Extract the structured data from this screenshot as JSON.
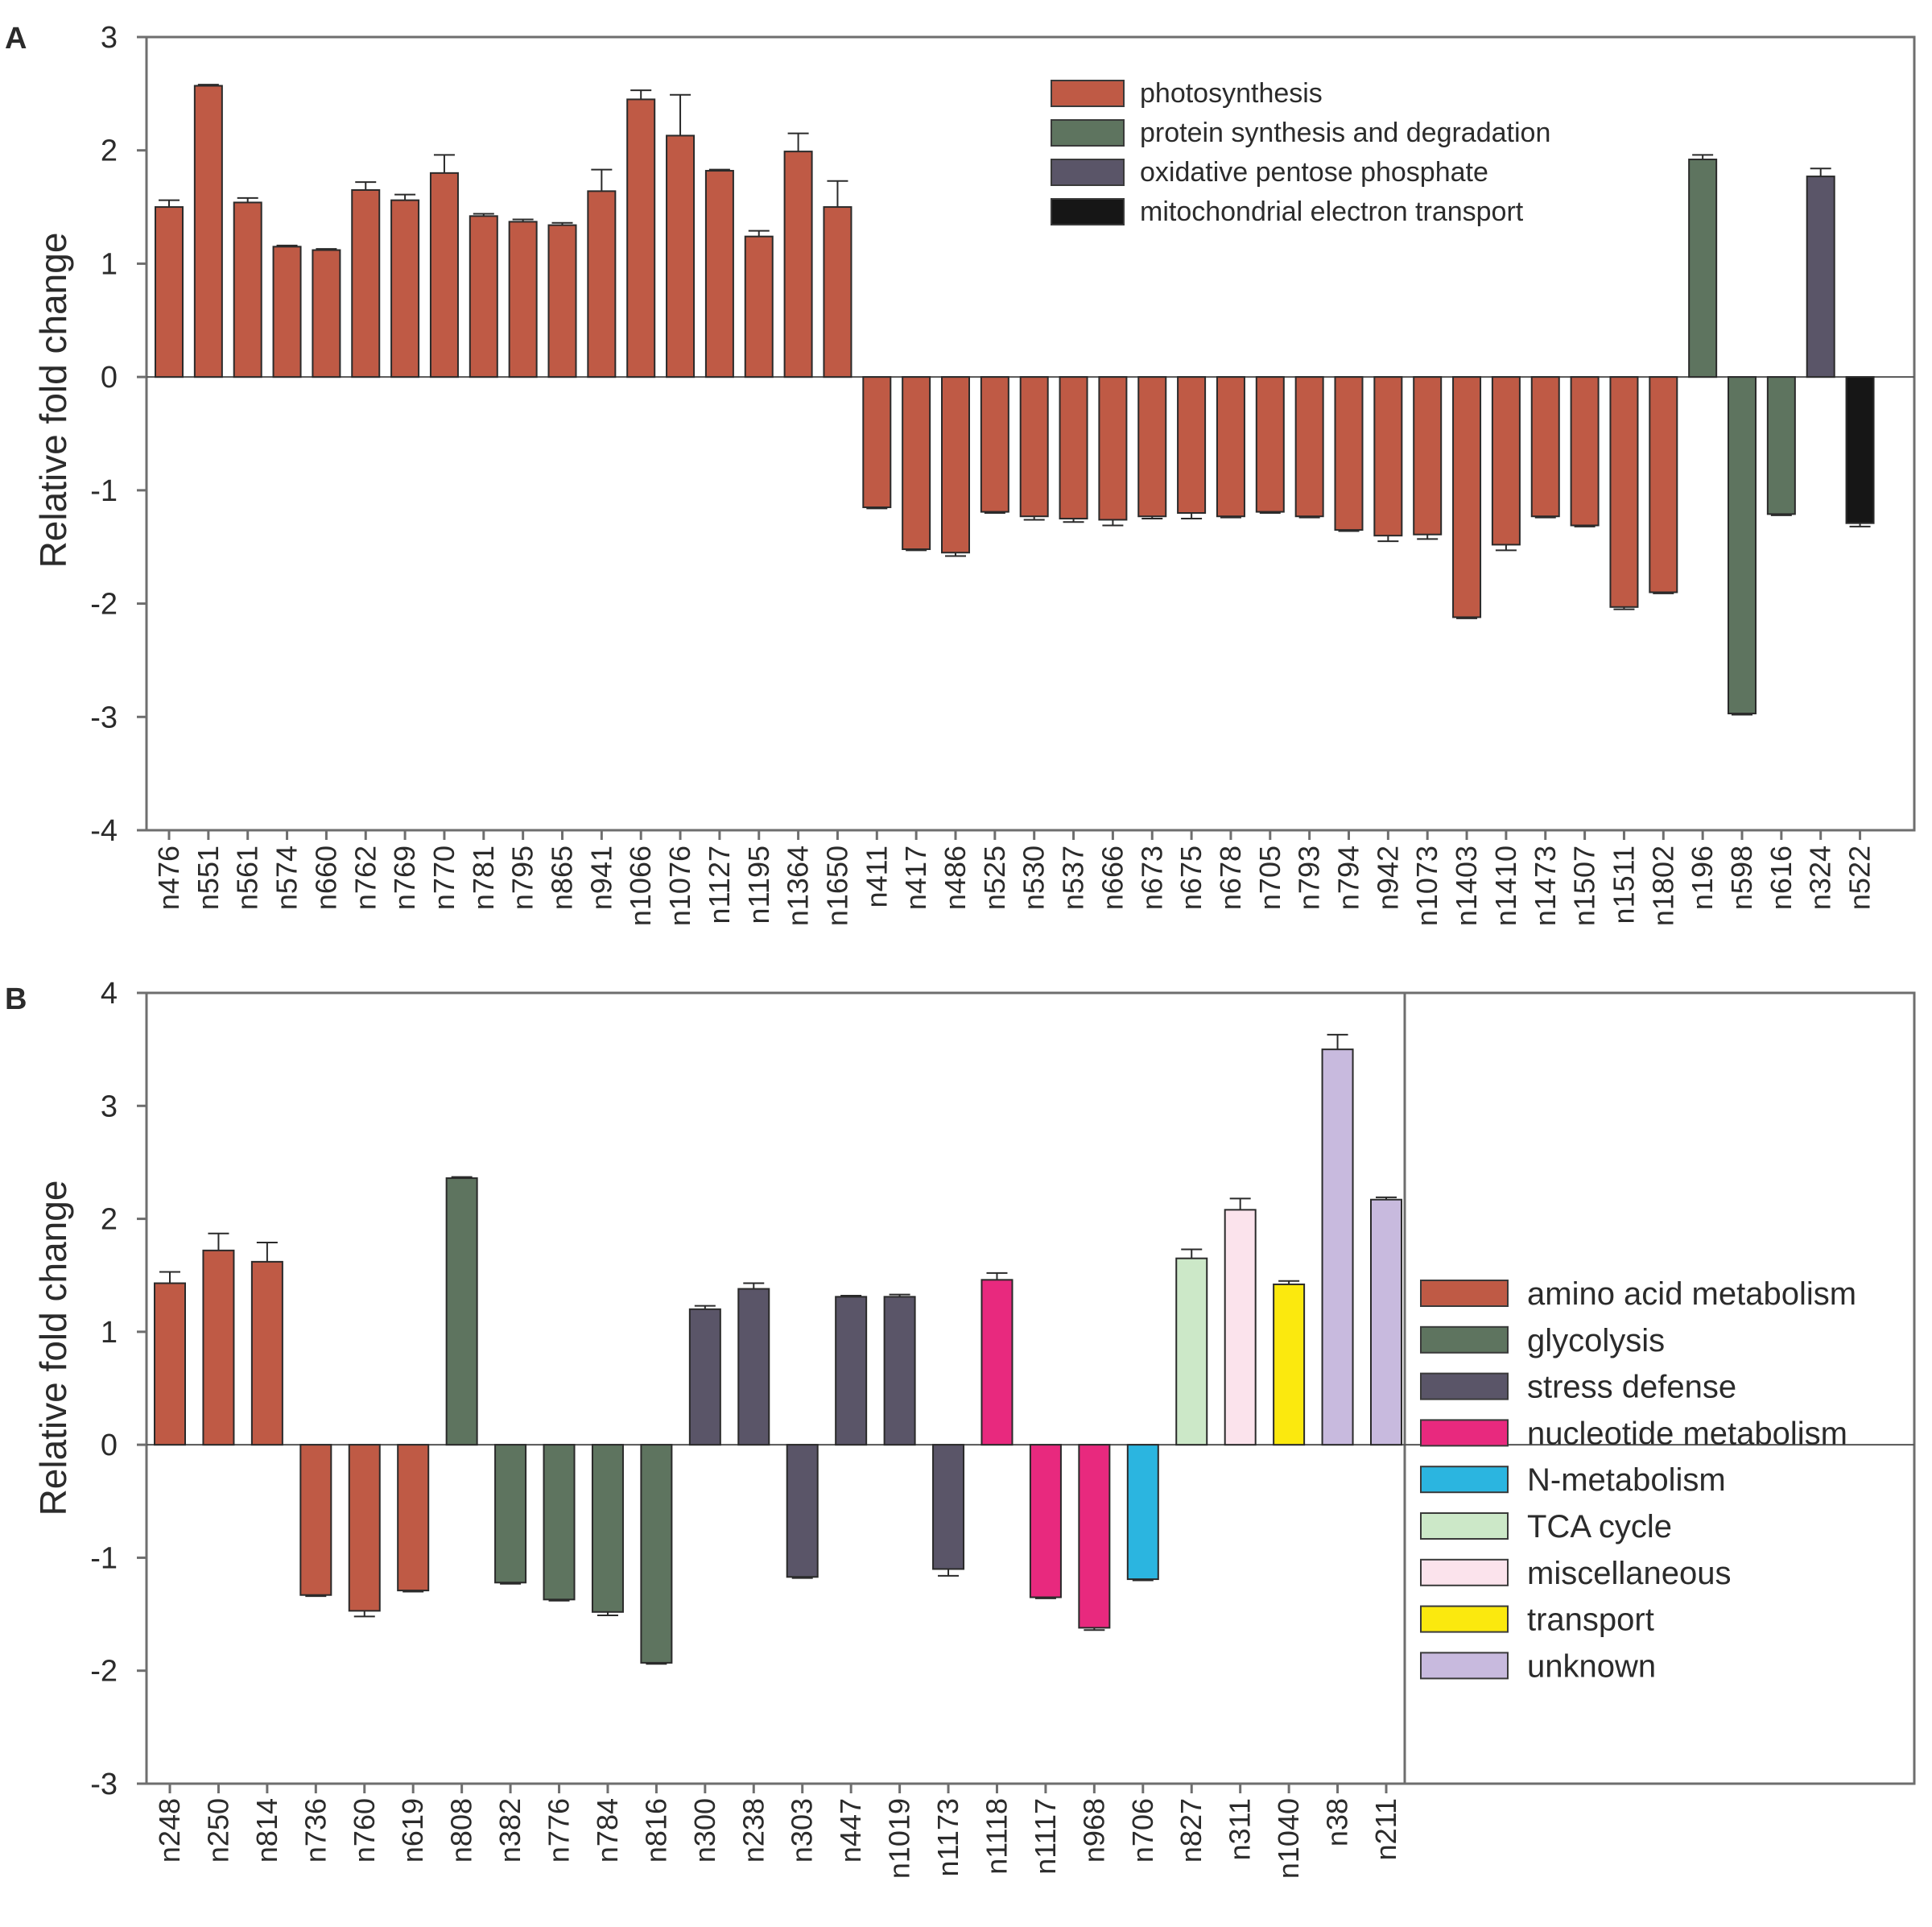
{
  "chart_data": [
    {
      "panel": "A",
      "type": "bar",
      "ylabel": "Relative fold change",
      "ylim": [
        -4,
        3
      ],
      "yticks": [
        3,
        2,
        1,
        0,
        -1,
        -2,
        -3,
        -4
      ],
      "legend_position": "top-right",
      "legend": [
        {
          "label": "photosynthesis",
          "color": "#bf5a45"
        },
        {
          "label": "protein synthesis and degradation",
          "color": "#5e745f"
        },
        {
          "label": "oxidative pentose phosphate",
          "color": "#5a5568"
        },
        {
          "label": "mitochondrial electron transport",
          "color": "#161616"
        }
      ],
      "categories": [
        "n476",
        "n551",
        "n561",
        "n574",
        "n660",
        "n762",
        "n769",
        "n770",
        "n781",
        "n795",
        "n865",
        "n941",
        "n1066",
        "n1076",
        "n1127",
        "n1195",
        "n1364",
        "n1650",
        "n411",
        "n417",
        "n486",
        "n525",
        "n530",
        "n537",
        "n666",
        "n673",
        "n675",
        "n678",
        "n705",
        "n793",
        "n794",
        "n942",
        "n1073",
        "n1403",
        "n1410",
        "n1473",
        "n1507",
        "n1511",
        "n1802",
        "n196",
        "n598",
        "n616",
        "n324",
        "n522"
      ],
      "values": [
        1.5,
        2.57,
        1.54,
        1.15,
        1.12,
        1.65,
        1.56,
        1.8,
        1.42,
        1.37,
        1.34,
        1.64,
        2.45,
        2.13,
        1.82,
        1.24,
        1.99,
        1.5,
        -1.15,
        -1.52,
        -1.55,
        -1.19,
        -1.23,
        -1.25,
        -1.26,
        -1.23,
        -1.2,
        -1.23,
        -1.19,
        -1.23,
        -1.35,
        -1.4,
        -1.39,
        -2.12,
        -1.48,
        -1.23,
        -1.31,
        -2.03,
        -1.9,
        1.92,
        -2.97,
        -1.21,
        1.77,
        -1.29
      ],
      "errors": [
        0.06,
        0.01,
        0.04,
        0.01,
        0.01,
        0.07,
        0.05,
        0.16,
        0.02,
        0.02,
        0.02,
        0.19,
        0.08,
        0.36,
        0.01,
        0.05,
        0.16,
        0.23,
        0.01,
        0.01,
        0.03,
        0.01,
        0.03,
        0.03,
        0.05,
        0.02,
        0.05,
        0.01,
        0.01,
        0.01,
        0.01,
        0.05,
        0.04,
        0.01,
        0.05,
        0.01,
        0.01,
        0.02,
        0.01,
        0.04,
        0.01,
        0.01,
        0.07,
        0.03
      ],
      "groups": [
        "photosynthesis",
        "photosynthesis",
        "photosynthesis",
        "photosynthesis",
        "photosynthesis",
        "photosynthesis",
        "photosynthesis",
        "photosynthesis",
        "photosynthesis",
        "photosynthesis",
        "photosynthesis",
        "photosynthesis",
        "photosynthesis",
        "photosynthesis",
        "photosynthesis",
        "photosynthesis",
        "photosynthesis",
        "photosynthesis",
        "photosynthesis",
        "photosynthesis",
        "photosynthesis",
        "photosynthesis",
        "photosynthesis",
        "photosynthesis",
        "photosynthesis",
        "photosynthesis",
        "photosynthesis",
        "photosynthesis",
        "photosynthesis",
        "photosynthesis",
        "photosynthesis",
        "photosynthesis",
        "photosynthesis",
        "photosynthesis",
        "photosynthesis",
        "photosynthesis",
        "photosynthesis",
        "photosynthesis",
        "photosynthesis",
        "protein synthesis and degradation",
        "protein synthesis and degradation",
        "protein synthesis and degradation",
        "oxidative pentose phosphate",
        "mitochondrial electron transport"
      ]
    },
    {
      "panel": "B",
      "type": "bar",
      "ylabel": "Relative fold change",
      "ylim": [
        -3,
        4
      ],
      "yticks": [
        4,
        3,
        2,
        1,
        0,
        -1,
        -2,
        -3
      ],
      "legend_position": "right",
      "legend": [
        {
          "label": "amino acid metabolism",
          "color": "#bf5a45"
        },
        {
          "label": "glycolysis",
          "color": "#5e745f"
        },
        {
          "label": "stress defense",
          "color": "#5a5568"
        },
        {
          "label": "nucleotide metabolism",
          "color": "#e8297e"
        },
        {
          "label": "N-metabolism",
          "color": "#2bb5e0"
        },
        {
          "label": "TCA cycle",
          "color": "#cce8c8"
        },
        {
          "label": "miscellaneous",
          "color": "#fbe3ec"
        },
        {
          "label": "transport",
          "color": "#fbe90e"
        },
        {
          "label": "unknown",
          "color": "#c8bade"
        }
      ],
      "categories": [
        "n248",
        "n250",
        "n814",
        "n736",
        "n760",
        "n619",
        "n808",
        "n382",
        "n776",
        "n784",
        "n816",
        "n300",
        "n238",
        "n303",
        "n447",
        "n1019",
        "n1173",
        "n1118",
        "n1117",
        "n968",
        "n706",
        "n827",
        "n311",
        "n1040",
        "n38",
        "n211"
      ],
      "values": [
        1.43,
        1.72,
        1.62,
        -1.33,
        -1.47,
        -1.29,
        2.36,
        -1.22,
        -1.37,
        -1.48,
        -1.93,
        1.2,
        1.38,
        -1.17,
        1.31,
        1.31,
        -1.1,
        1.46,
        -1.35,
        -1.62,
        -1.19,
        1.65,
        2.08,
        1.42,
        3.5,
        2.17
      ],
      "errors": [
        0.1,
        0.15,
        0.17,
        0.01,
        0.05,
        0.01,
        0.01,
        0.01,
        0.01,
        0.03,
        0.01,
        0.03,
        0.05,
        0.01,
        0.01,
        0.02,
        0.06,
        0.06,
        0.01,
        0.02,
        0.01,
        0.08,
        0.1,
        0.03,
        0.13,
        0.02
      ],
      "groups": [
        "amino acid metabolism",
        "amino acid metabolism",
        "amino acid metabolism",
        "amino acid metabolism",
        "amino acid metabolism",
        "amino acid metabolism",
        "glycolysis",
        "glycolysis",
        "glycolysis",
        "glycolysis",
        "glycolysis",
        "stress defense",
        "stress defense",
        "stress defense",
        "stress defense",
        "stress defense",
        "stress defense",
        "nucleotide metabolism",
        "nucleotide metabolism",
        "nucleotide metabolism",
        "N-metabolism",
        "TCA cycle",
        "miscellaneous",
        "transport",
        "unknown",
        "unknown"
      ]
    }
  ]
}
